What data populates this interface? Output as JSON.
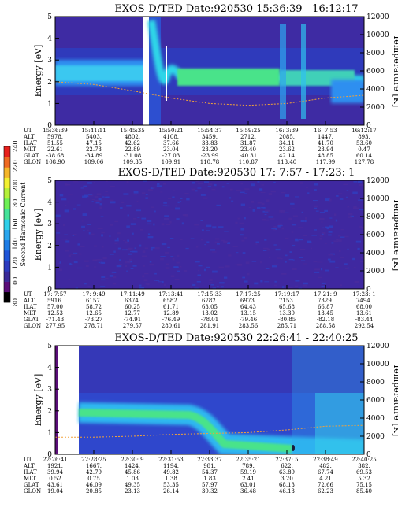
{
  "chart_data": [
    {
      "type": "heatmap",
      "title": "EXOS-D/TED   Date:920530   15:36:39 - 16:12:17",
      "ylabel": "Energy [eV]",
      "y2label": "Temperature [K]",
      "ylim": [
        0,
        5
      ],
      "y2lim": [
        0,
        12000
      ],
      "yticks": [
        "0",
        "1",
        "2",
        "3",
        "4",
        "5"
      ],
      "y2ticks": [
        "0",
        "2000",
        "4000",
        "6000",
        "8000",
        "10000",
        "12000"
      ],
      "table_rows": [
        {
          "name": "UT",
          "values": [
            "15:36:39",
            "15:41:11",
            "15:45:35",
            "15:50:21",
            "15:54:37",
            "15:59:25",
            "16: 3:39",
            "16: 7:53",
            "16:12:17"
          ]
        },
        {
          "name": "ALT",
          "values": [
            "5978.",
            "5403.",
            "4802.",
            "4108.",
            "3459.",
            "2712.",
            "2085.",
            "1447.",
            "893."
          ]
        },
        {
          "name": "ILAT",
          "values": [
            "51.55",
            "47.15",
            "42.62",
            "37.66",
            "33.83",
            "31.87",
            "34.11",
            "41.70",
            "53.60"
          ]
        },
        {
          "name": "MLT",
          "values": [
            "22.61",
            "22.73",
            "22.89",
            "23.04",
            "23.20",
            "23.40",
            "23.62",
            "23.94",
            "0.47"
          ]
        },
        {
          "name": "GLAT",
          "values": [
            "-38.68",
            "-34.89",
            "-31.08",
            "-27.03",
            "-23.99",
            "-40.31",
            "42.14",
            "48.85",
            "60.14"
          ]
        },
        {
          "name": "GLON",
          "values": [
            "108.90",
            "109.06",
            "109.35",
            "109.91",
            "110.78",
            "110.87",
            "113.40",
            "117.99",
            "127.78"
          ]
        }
      ],
      "ridge_energy_ev": [
        2.2,
        2.2,
        2.2,
        2.2,
        2.1,
        2.0,
        1.9,
        1.8,
        1.6
      ],
      "temperature_k": [
        4800,
        4500,
        3800,
        3000,
        2400,
        2200,
        2400,
        3000,
        3300
      ]
    },
    {
      "type": "heatmap",
      "title": "EXOS-D/TED   Date:920530  17: 7:57 - 17:23: 1",
      "ylabel": "Energy [eV]",
      "y2label": "Temperature [K]",
      "ylim": [
        0,
        5
      ],
      "y2lim": [
        0,
        12000
      ],
      "yticks": [
        "0",
        "1",
        "2",
        "3",
        "4",
        "5"
      ],
      "y2ticks": [
        "0",
        "2000",
        "4000",
        "6000",
        "8000",
        "10000",
        "12000"
      ],
      "table_rows": [
        {
          "name": "UT",
          "values": [
            "17: 7:57",
            "17: 9:49",
            "17:11:49",
            "17:13:41",
            "17:15:33",
            "17:17:25",
            "17:19:17",
            "17:21: 9",
            "17:23: 1"
          ]
        },
        {
          "name": "ALT",
          "values": [
            "5916.",
            "6157.",
            "6374.",
            "6582.",
            "6782.",
            "6973.",
            "7153.",
            "7329.",
            "7494."
          ]
        },
        {
          "name": "ILAT",
          "values": [
            "57.00",
            "58.72",
            "60.25",
            "61.71",
            "63.05",
            "64.43",
            "65.68",
            "66.87",
            "68.00"
          ]
        },
        {
          "name": "MLT",
          "values": [
            "12.53",
            "12.65",
            "12.77",
            "12.89",
            "13.02",
            "13.15",
            "13.30",
            "13.45",
            "13.61"
          ]
        },
        {
          "name": "GLAT",
          "values": [
            "-71.43",
            "-73.27",
            "-74.91",
            "-76.49",
            "-78.01",
            "-79.46",
            "-80.85",
            "-82.18",
            "-83.44"
          ]
        },
        {
          "name": "GLON",
          "values": [
            "277.95",
            "278.71",
            "279.57",
            "280.61",
            "281.91",
            "283.56",
            "285.71",
            "288.58",
            "292.54"
          ]
        }
      ]
    },
    {
      "type": "heatmap",
      "title": "EXOS-D/TED   Date:920530   22:26:41 - 22:40:25",
      "ylabel": "Energy [eV]",
      "y2label": "Temperature [K]",
      "ylim": [
        0,
        5
      ],
      "y2lim": [
        0,
        12000
      ],
      "yticks": [
        "0",
        "1",
        "2",
        "3",
        "4",
        "5"
      ],
      "y2ticks": [
        "0",
        "2000",
        "4000",
        "6000",
        "8000",
        "10000",
        "12000"
      ],
      "table_rows": [
        {
          "name": "UT",
          "values": [
            "22:26:41",
            "22:28:25",
            "22:30: 9",
            "22:31:53",
            "22:33:37",
            "22:35:21",
            "22:37: 5",
            "22:38:49",
            "22:40:25"
          ]
        },
        {
          "name": "ALT",
          "values": [
            "1921.",
            "1667.",
            "1424.",
            "1194.",
            "981.",
            "789.",
            "622.",
            "482.",
            "382."
          ]
        },
        {
          "name": "ILAT",
          "values": [
            "39.94",
            "42.79",
            "45.86",
            "49.82",
            "54.37",
            "59.19",
            "63.89",
            "67.74",
            "69.53"
          ]
        },
        {
          "name": "MLT",
          "values": [
            "0.52",
            "0.75",
            "1.03",
            "1.38",
            "1.83",
            "2.41",
            "3.20",
            "4.21",
            "5.32"
          ]
        },
        {
          "name": "GLAT",
          "values": [
            "43.61",
            "46.09",
            "49.35",
            "53.35",
            "57.97",
            "63.01",
            "68.13",
            "72.66",
            "75.15"
          ]
        },
        {
          "name": "GLON",
          "values": [
            "19.04",
            "20.85",
            "23.13",
            "26.14",
            "30.32",
            "36.48",
            "46.13",
            "62.23",
            "85.40"
          ]
        }
      ],
      "ridge_energy_ev": [
        2.0,
        2.0,
        1.95,
        1.7,
        1.2,
        0.7,
        0.6,
        0.6,
        0.6
      ],
      "temperature_k": [
        1900,
        1900,
        2000,
        2200,
        2300,
        2400,
        2700,
        3100,
        3200
      ]
    }
  ],
  "colorbar": {
    "label": "Second Harmonic Current",
    "ticks": [
      "80",
      "100",
      "120",
      "140",
      "160",
      "180",
      "200",
      "220",
      "240"
    ],
    "colors": [
      "#000000",
      "#5b0e7a",
      "#3a2a99",
      "#2c3bbf",
      "#1f55d8",
      "#1e7de6",
      "#2aa6ee",
      "#2fd0ea",
      "#45e39a",
      "#6ef056",
      "#b5f03a",
      "#f2f032",
      "#f5b62a",
      "#ef6a22",
      "#e8201c"
    ]
  }
}
